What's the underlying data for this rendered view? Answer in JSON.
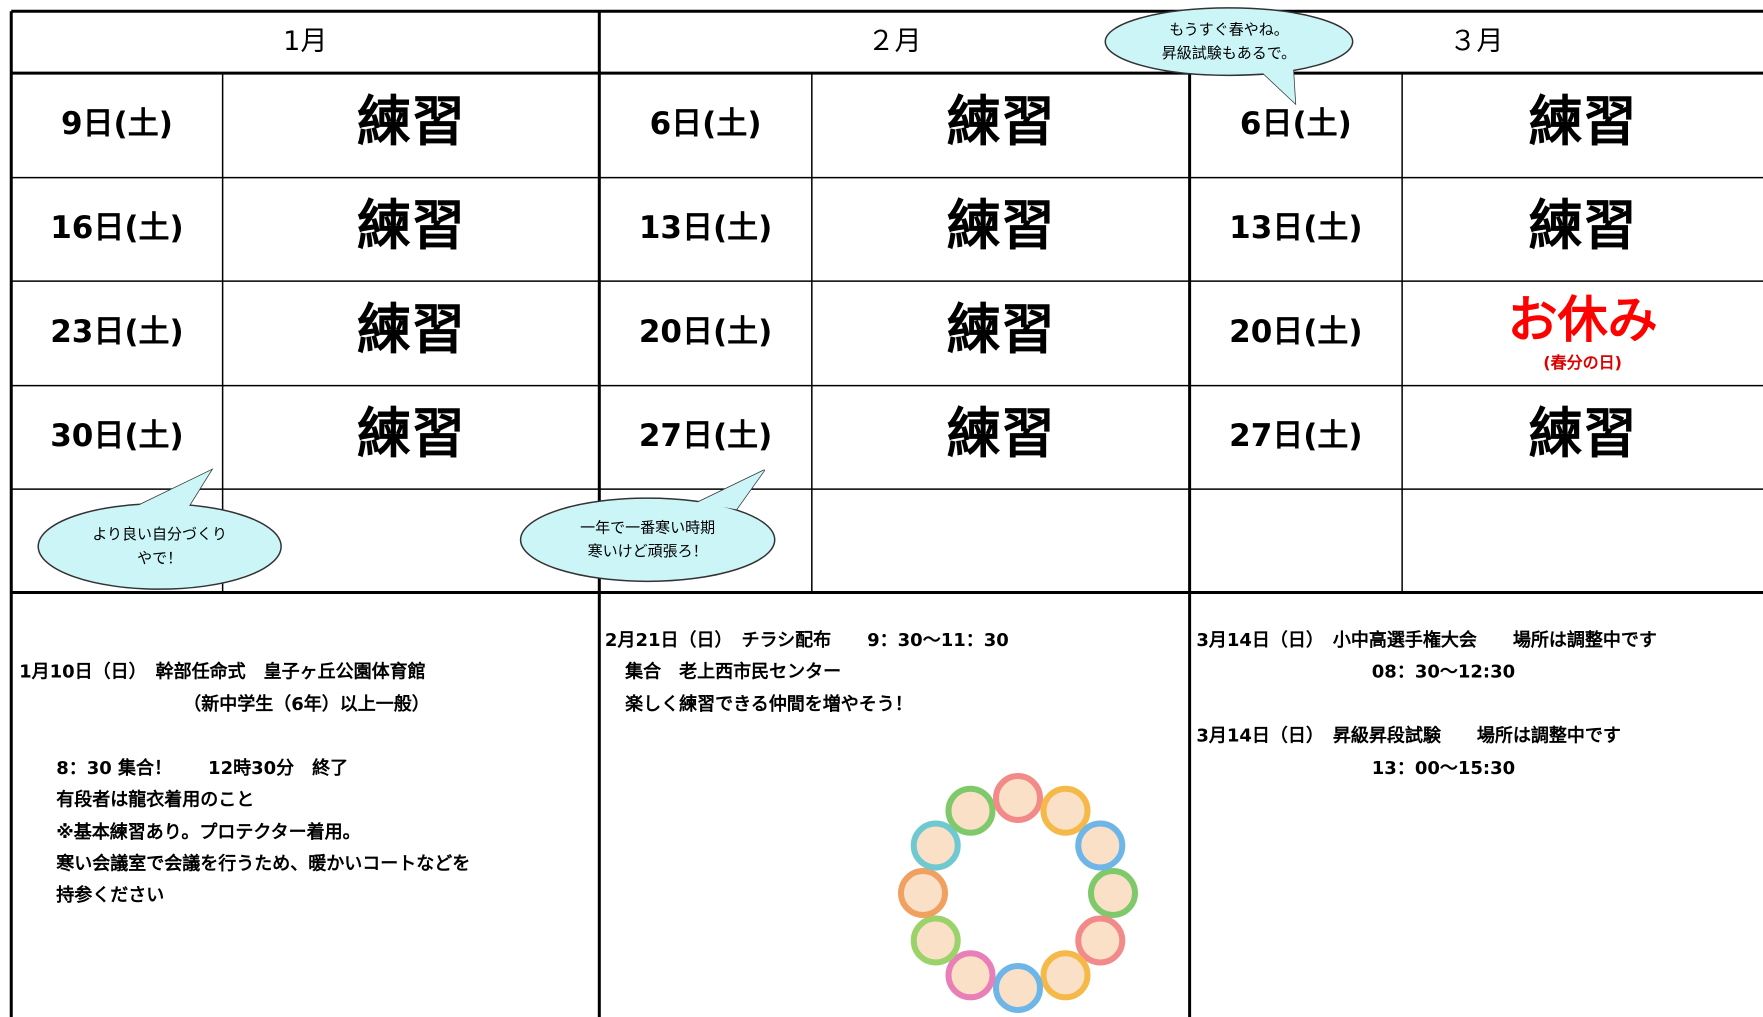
{
  "months": [
    {
      "name": "1月",
      "rows": [
        {
          "date": "9日(土)",
          "event": "練習"
        },
        {
          "date": "16日(土)",
          "event": "練習"
        },
        {
          "date": "23日(土)",
          "event": "練習"
        },
        {
          "date": "30日(土)",
          "event": "練習"
        }
      ]
    },
    {
      "name": "２月",
      "rows": [
        {
          "date": "6日(土)",
          "event": "練習"
        },
        {
          "date": "13日(土)",
          "event": "練習"
        },
        {
          "date": "20日(土)",
          "event": "練習"
        },
        {
          "date": "27日(土)",
          "event": "練習"
        }
      ]
    },
    {
      "name": "３月",
      "rows": [
        {
          "date": "6日(土)",
          "event": "練習"
        },
        {
          "date": "13日(土)",
          "event": "練習"
        },
        {
          "date": "20日(土)",
          "event": "お休み",
          "event_note": "(春分の日)"
        },
        {
          "date": "27日(土)",
          "event": "練習"
        }
      ]
    }
  ],
  "bubbles": [
    {
      "lines": [
        "より良い自分づくり",
        "やで！"
      ]
    },
    {
      "lines": [
        "一年で一番寒い時期",
        "寒いけど頑張ろ！"
      ]
    },
    {
      "lines": [
        "もうすぐ春やね。",
        "昇級試験もあるで。"
      ]
    }
  ],
  "notes": [
    {
      "lines": [
        "1月10日（日）　幹部任命式　皇子ヶ丘公園体育館",
        "（新中学生（6年）以上一般）",
        "8：30 集合！　　12時30分　終了",
        "有段者は龍衣着用のこと",
        "※基本練習あり。プロテクター着用。",
        "寒い会議室で会議を行うため、暖かいコートなどを",
        "持参ください"
      ]
    },
    {
      "lines": [
        "2月21日（日）　チラシ配布　　9：30～11：30",
        "集合　老上西市民センター",
        "楽しく練習できる仲間を増やそう！"
      ]
    },
    {
      "lines": [
        "3月14日（日）　小中高選手権大会　　場所は調整中です",
        "08：30～12:30",
        "3月14日（日）　昇級昇段試験　　場所は調整中です",
        "13：00～15:30"
      ]
    }
  ]
}
